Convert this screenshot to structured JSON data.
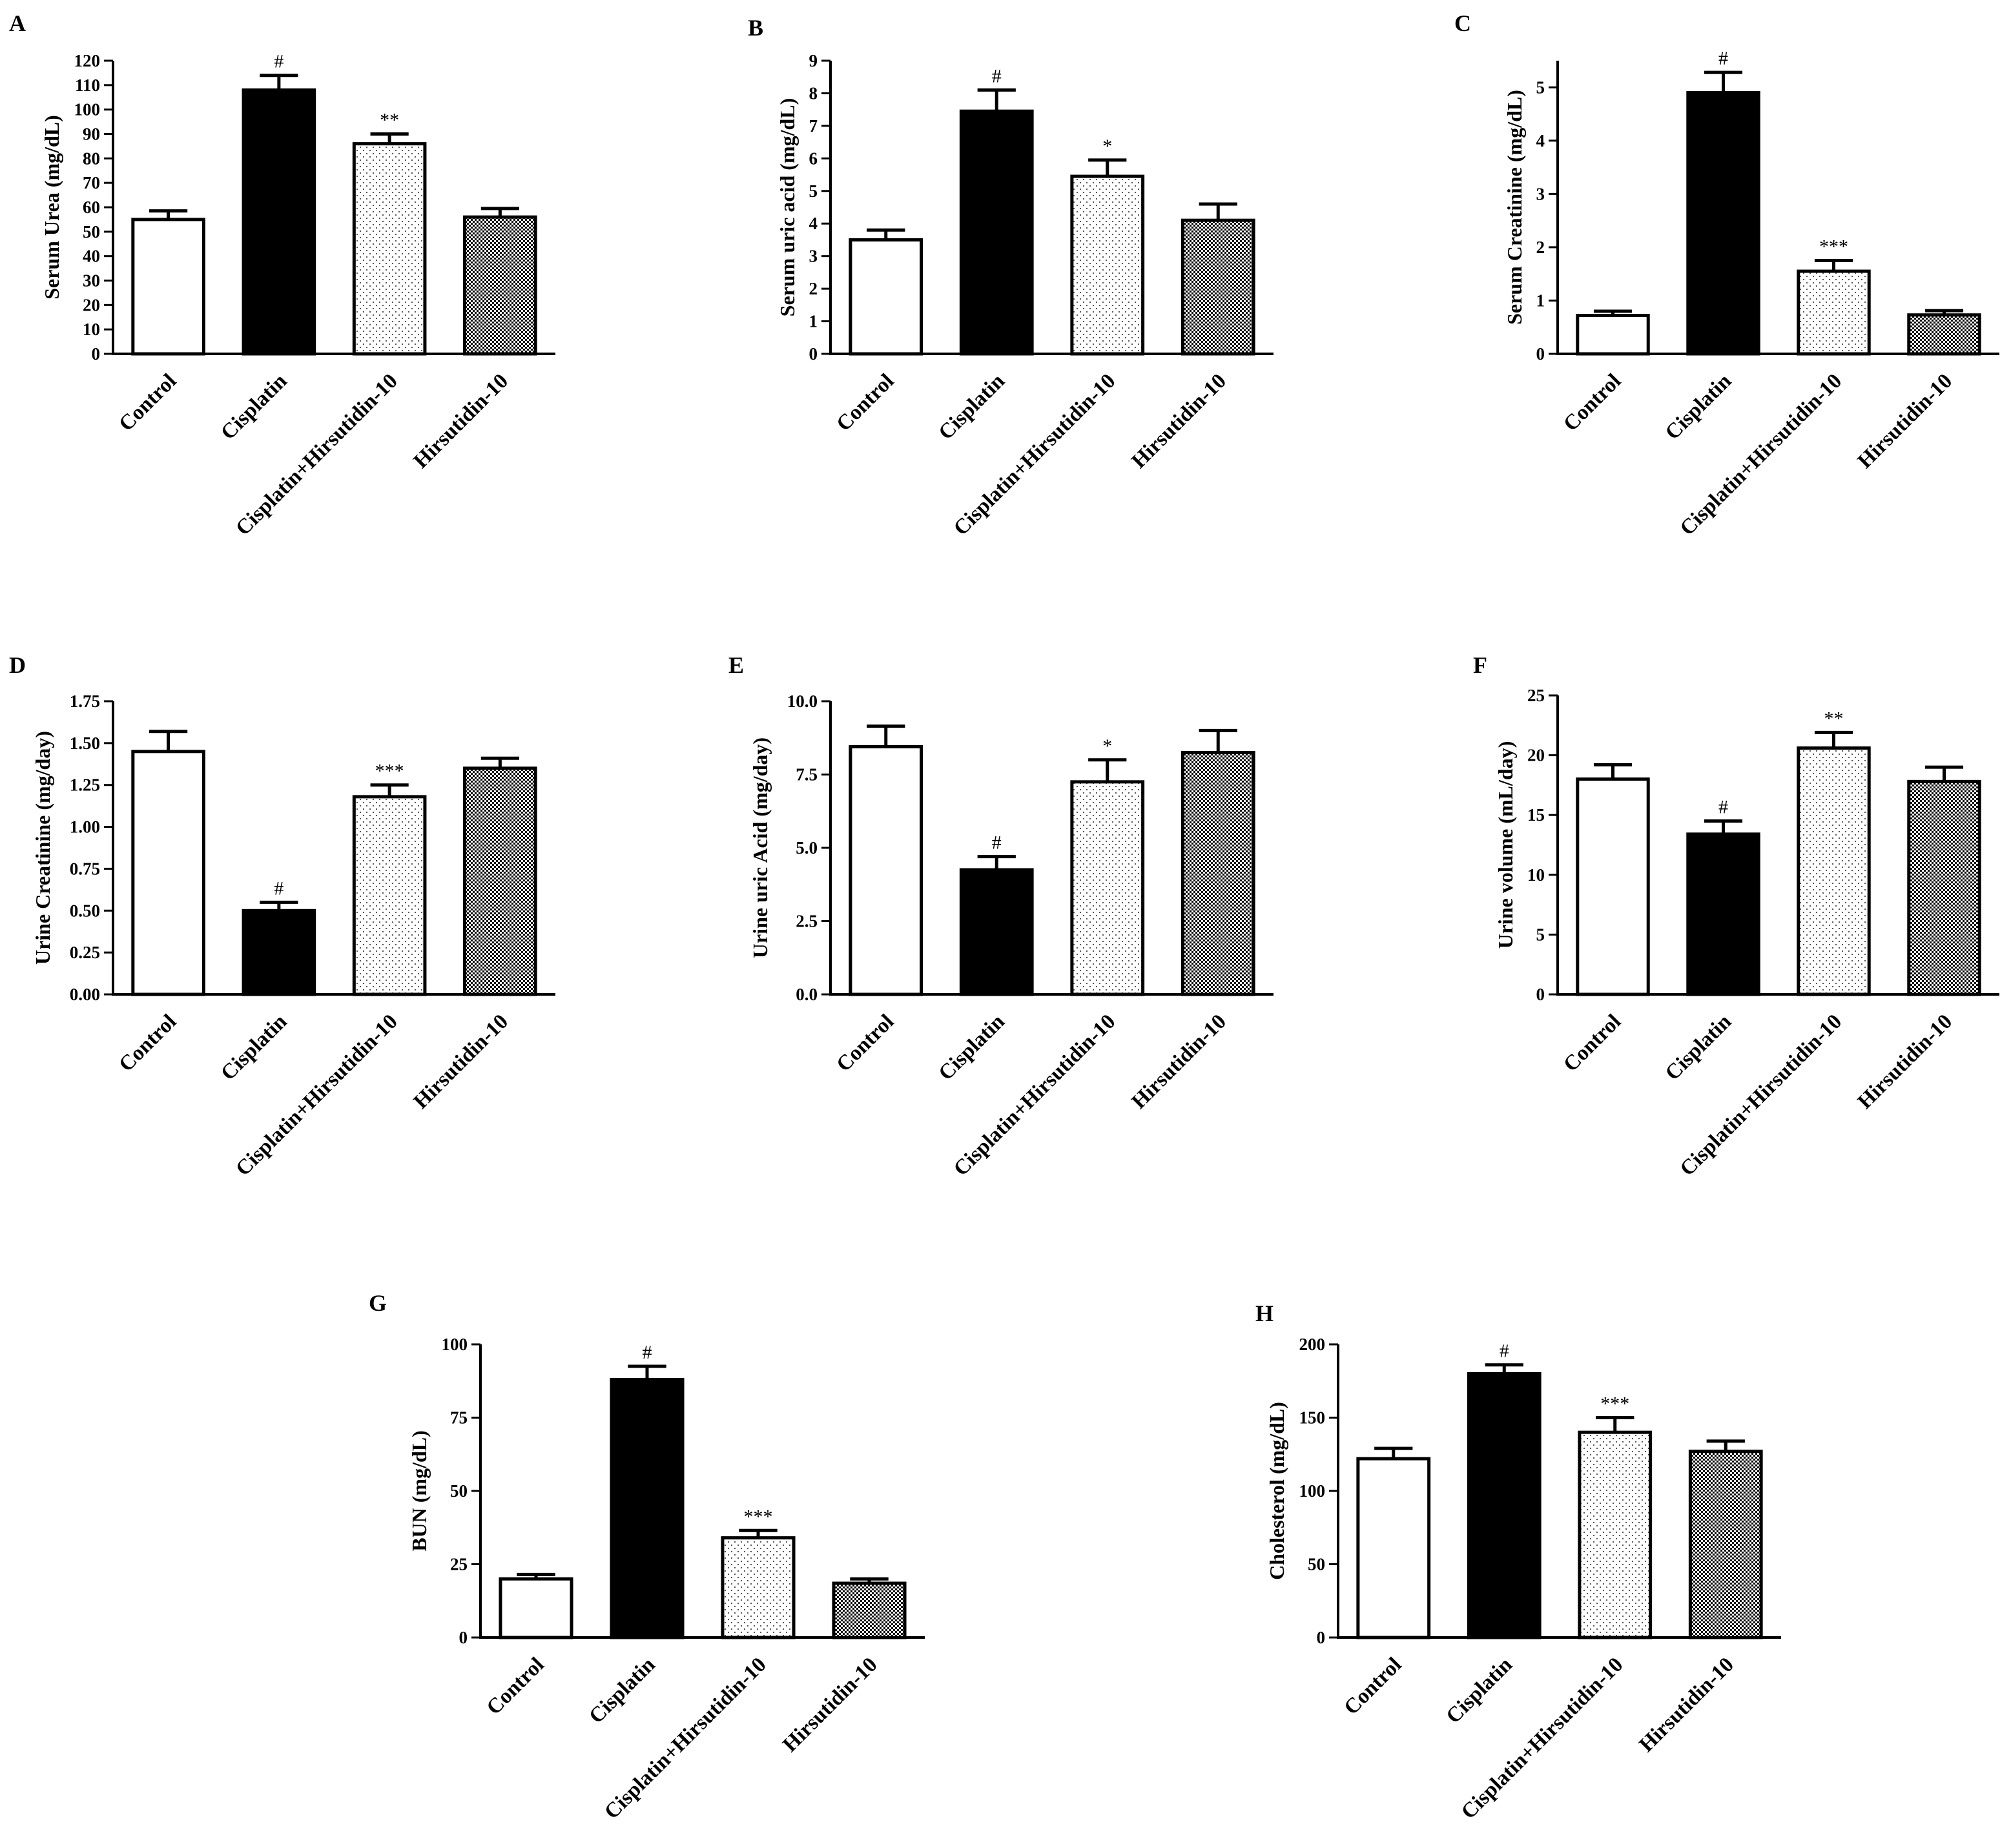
{
  "figure": {
    "categories": [
      "Control",
      "Cisplatin",
      "Cisplatin+Hirsutidin-10",
      "Hirsutidin-10"
    ],
    "fills": [
      "white",
      "black",
      "dots",
      "checker"
    ],
    "colors": {
      "stroke": "#000000",
      "background": "#ffffff",
      "sparse_dots": "#555555"
    }
  },
  "chart_data": [
    {
      "panel": "A",
      "type": "bar",
      "title": "",
      "ylabel": "Serum Urea (mg/dL)",
      "xlabel": "",
      "categories": [
        "Control",
        "Cisplatin",
        "Cisplatin+Hirsutidin-10",
        "Hirsutidin-10"
      ],
      "ylim": [
        0,
        120
      ],
      "yticks": [
        "0",
        "10",
        "20",
        "30",
        "40",
        "50",
        "60",
        "70",
        "80",
        "90",
        "100",
        "110",
        "120"
      ],
      "values": [
        55,
        108,
        86,
        56
      ],
      "errors": [
        3.5,
        6,
        4,
        3.5
      ],
      "significance": [
        "",
        "#",
        "**",
        ""
      ]
    },
    {
      "panel": "B",
      "type": "bar",
      "title": "",
      "ylabel": "Serum uric acid (mg/dL)",
      "xlabel": "",
      "categories": [
        "Control",
        "Cisplatin",
        "Cisplatin+Hirsutidin-10",
        "Hirsutidin-10"
      ],
      "ylim": [
        0,
        9
      ],
      "yticks": [
        "0",
        "1",
        "2",
        "3",
        "4",
        "5",
        "6",
        "7",
        "8",
        "9"
      ],
      "values": [
        3.5,
        7.45,
        5.45,
        4.1
      ],
      "errors": [
        0.3,
        0.65,
        0.5,
        0.5
      ],
      "significance": [
        "",
        "#",
        "*",
        ""
      ]
    },
    {
      "panel": "C",
      "type": "bar",
      "title": "",
      "ylabel": "Serum Creatinine (mg/dL)",
      "xlabel": "",
      "categories": [
        "Control",
        "Cisplatin",
        "Cisplatin+Hirsutidin-10",
        "Hirsutidin-10"
      ],
      "ylim": [
        0,
        5.5
      ],
      "yticks": [
        "0",
        "1",
        "2",
        "3",
        "4",
        "5"
      ],
      "values": [
        0.72,
        4.9,
        1.55,
        0.73
      ],
      "errors": [
        0.08,
        0.38,
        0.2,
        0.08
      ],
      "significance": [
        "",
        "#",
        "***",
        ""
      ]
    },
    {
      "panel": "D",
      "type": "bar",
      "title": "",
      "ylabel": "Urine Creatinine (mg/day)",
      "xlabel": "",
      "categories": [
        "Control",
        "Cisplatin",
        "Cisplatin+Hirsutidin-10",
        "Hirsutidin-10"
      ],
      "ylim": [
        0,
        1.75
      ],
      "yticks": [
        "0.00",
        "0.25",
        "0.50",
        "0.75",
        "1.00",
        "1.25",
        "1.50",
        "1.75"
      ],
      "values": [
        1.45,
        0.5,
        1.18,
        1.35
      ],
      "errors": [
        0.12,
        0.05,
        0.07,
        0.06
      ],
      "significance": [
        "",
        "#",
        "***",
        ""
      ]
    },
    {
      "panel": "E",
      "type": "bar",
      "title": "",
      "ylabel": "Urine uric Acid (mg/day)",
      "xlabel": "",
      "categories": [
        "Control",
        "Cisplatin",
        "Cisplatin+Hirsutidin-10",
        "Hirsutidin-10"
      ],
      "ylim": [
        0,
        10
      ],
      "yticks": [
        "0.0",
        "2.5",
        "5.0",
        "7.5",
        "10.0"
      ],
      "values": [
        8.45,
        4.25,
        7.25,
        8.25
      ],
      "errors": [
        0.7,
        0.45,
        0.75,
        0.75
      ],
      "significance": [
        "",
        "#",
        "*",
        ""
      ]
    },
    {
      "panel": "F",
      "type": "bar",
      "title": "",
      "ylabel": "Urine volume (mL/day)",
      "xlabel": "",
      "categories": [
        "Control",
        "Cisplatin",
        "Cisplatin+Hirsutidin-10",
        "Hirsutidin-10"
      ],
      "ylim": [
        0,
        25
      ],
      "yticks": [
        "0",
        "5",
        "10",
        "15",
        "20",
        "25"
      ],
      "values": [
        18,
        13.4,
        20.6,
        17.8
      ],
      "errors": [
        1.2,
        1.1,
        1.3,
        1.2
      ],
      "significance": [
        "",
        "#",
        "**",
        ""
      ]
    },
    {
      "panel": "G",
      "type": "bar",
      "title": "",
      "ylabel": "BUN (mg/dL)",
      "xlabel": "",
      "categories": [
        "Control",
        "Cisplatin",
        "Cisplatin+Hirsutidin-10",
        "Hirsutidin-10"
      ],
      "ylim": [
        0,
        100
      ],
      "yticks": [
        "0",
        "25",
        "50",
        "75",
        "100"
      ],
      "values": [
        20,
        88,
        34,
        18.5
      ],
      "errors": [
        1.5,
        4.5,
        2.5,
        1.5
      ],
      "significance": [
        "",
        "#",
        "***",
        ""
      ]
    },
    {
      "panel": "H",
      "type": "bar",
      "title": "",
      "ylabel": "Cholesterol (mg/dL)",
      "xlabel": "",
      "categories": [
        "Control",
        "Cisplatin",
        "Cisplatin+Hirsutidin-10",
        "Hirsutidin-10"
      ],
      "ylim": [
        0,
        200
      ],
      "yticks": [
        "0",
        "50",
        "100",
        "150",
        "200"
      ],
      "values": [
        122,
        180,
        140,
        127
      ],
      "errors": [
        7,
        6,
        10,
        7
      ],
      "significance": [
        "",
        "#",
        "***",
        ""
      ]
    }
  ]
}
